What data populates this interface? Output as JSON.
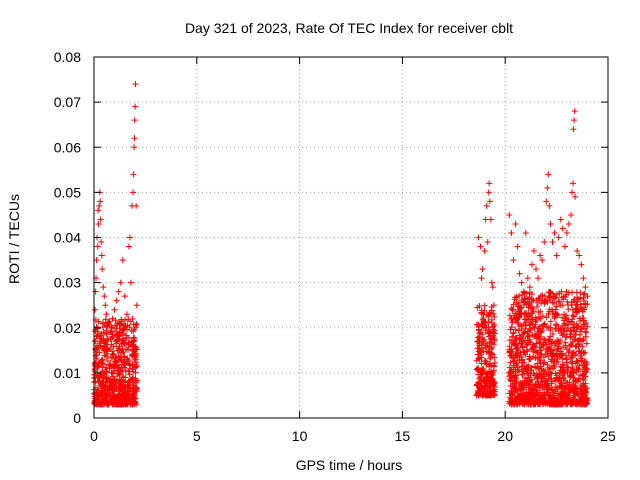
{
  "chart_data": {
    "type": "scatter",
    "title": "Day 321 of 2023, Rate Of TEC Index for receiver cblt",
    "xlabel": "GPS time / hours",
    "ylabel": "ROTI / TECUs",
    "xlim": [
      0,
      25
    ],
    "ylim": [
      0,
      0.08
    ],
    "x_ticks": [
      0,
      5,
      10,
      15,
      20,
      25
    ],
    "x_tick_labels": [
      "0",
      "5",
      "10",
      "15",
      "20",
      "25"
    ],
    "y_ticks": [
      0,
      0.01,
      0.02,
      0.03,
      0.04,
      0.05,
      0.06,
      0.07,
      0.08
    ],
    "y_tick_labels": [
      "0",
      "0.01",
      "0.02",
      "0.03",
      "0.04",
      "0.05",
      "0.06",
      "0.07",
      "0.08"
    ],
    "grid": true,
    "marker": "plus",
    "color": "#ff0000",
    "series": [
      {
        "name": "ROTI",
        "segments": [
          {
            "x_start": 0.0,
            "x_end": 2.1,
            "typical_range": [
              0.003,
              0.022
            ],
            "peak": 0.074
          },
          {
            "x_start": 18.6,
            "x_end": 19.5,
            "typical_range": [
              0.005,
              0.025
            ],
            "peak": 0.052
          },
          {
            "x_start": 20.2,
            "x_end": 24.0,
            "typical_range": [
              0.003,
              0.028
            ],
            "peak": 0.068
          }
        ],
        "points": [
          [
            0.02,
            0.012
          ],
          [
            0.05,
            0.024
          ],
          [
            0.08,
            0.028
          ],
          [
            0.1,
            0.031
          ],
          [
            0.12,
            0.035
          ],
          [
            0.15,
            0.04
          ],
          [
            0.18,
            0.038
          ],
          [
            0.2,
            0.046
          ],
          [
            0.22,
            0.043
          ],
          [
            0.25,
            0.047
          ],
          [
            0.28,
            0.05
          ],
          [
            0.3,
            0.048
          ],
          [
            0.32,
            0.044
          ],
          [
            0.35,
            0.039
          ],
          [
            0.38,
            0.036
          ],
          [
            0.4,
            0.033
          ],
          [
            0.45,
            0.029
          ],
          [
            0.5,
            0.027
          ],
          [
            0.55,
            0.025
          ],
          [
            0.6,
            0.023
          ],
          [
            0.7,
            0.021
          ],
          [
            0.8,
            0.019
          ],
          [
            0.9,
            0.022
          ],
          [
            1.0,
            0.024
          ],
          [
            1.1,
            0.026
          ],
          [
            1.2,
            0.028
          ],
          [
            1.3,
            0.03
          ],
          [
            1.4,
            0.035
          ],
          [
            1.5,
            0.027
          ],
          [
            1.6,
            0.023
          ],
          [
            1.7,
            0.038
          ],
          [
            1.75,
            0.04
          ],
          [
            1.8,
            0.03
          ],
          [
            1.85,
            0.047
          ],
          [
            1.9,
            0.05
          ],
          [
            1.92,
            0.054
          ],
          [
            1.95,
            0.06
          ],
          [
            1.97,
            0.062
          ],
          [
            1.98,
            0.066
          ],
          [
            2.0,
            0.069
          ],
          [
            2.02,
            0.074
          ],
          [
            2.05,
            0.047
          ],
          [
            2.08,
            0.025
          ],
          [
            18.7,
            0.04
          ],
          [
            18.8,
            0.038
          ],
          [
            18.85,
            0.031
          ],
          [
            18.9,
            0.033
          ],
          [
            19.0,
            0.037
          ],
          [
            19.05,
            0.044
          ],
          [
            19.1,
            0.047
          ],
          [
            19.15,
            0.039
          ],
          [
            19.2,
            0.05
          ],
          [
            19.22,
            0.052
          ],
          [
            19.25,
            0.048
          ],
          [
            19.3,
            0.044
          ],
          [
            19.35,
            0.03
          ],
          [
            19.4,
            0.029
          ],
          [
            19.45,
            0.025
          ],
          [
            20.2,
            0.045
          ],
          [
            20.3,
            0.041
          ],
          [
            20.4,
            0.035
          ],
          [
            20.5,
            0.043
          ],
          [
            20.6,
            0.038
          ],
          [
            20.7,
            0.032
          ],
          [
            20.8,
            0.03
          ],
          [
            20.9,
            0.028
          ],
          [
            21.0,
            0.041
          ],
          [
            21.1,
            0.031
          ],
          [
            21.2,
            0.029
          ],
          [
            21.3,
            0.034
          ],
          [
            21.4,
            0.037
          ],
          [
            21.5,
            0.033
          ],
          [
            21.6,
            0.031
          ],
          [
            21.7,
            0.036
          ],
          [
            21.8,
            0.035
          ],
          [
            21.9,
            0.039
          ],
          [
            22.0,
            0.048
          ],
          [
            22.05,
            0.051
          ],
          [
            22.1,
            0.054
          ],
          [
            22.15,
            0.047
          ],
          [
            22.2,
            0.043
          ],
          [
            22.3,
            0.039
          ],
          [
            22.4,
            0.041
          ],
          [
            22.5,
            0.036
          ],
          [
            22.6,
            0.04
          ],
          [
            22.7,
            0.044
          ],
          [
            22.8,
            0.042
          ],
          [
            22.9,
            0.038
          ],
          [
            23.0,
            0.041
          ],
          [
            23.1,
            0.043
          ],
          [
            23.2,
            0.045
          ],
          [
            23.25,
            0.05
          ],
          [
            23.3,
            0.052
          ],
          [
            23.32,
            0.064
          ],
          [
            23.35,
            0.066
          ],
          [
            23.38,
            0.068
          ],
          [
            23.4,
            0.049
          ],
          [
            23.5,
            0.037
          ],
          [
            23.6,
            0.036
          ],
          [
            23.7,
            0.034
          ],
          [
            23.8,
            0.031
          ],
          [
            23.9,
            0.029
          ],
          [
            24.0,
            0.027
          ]
        ]
      }
    ]
  }
}
